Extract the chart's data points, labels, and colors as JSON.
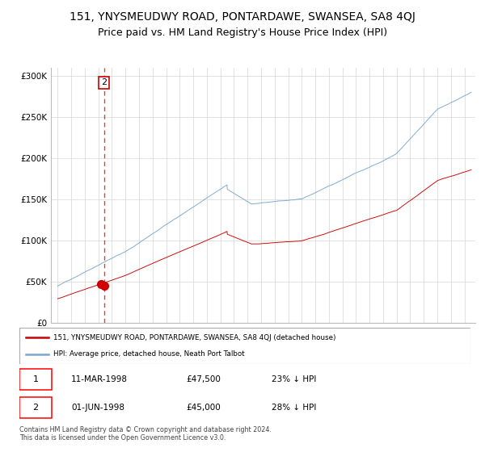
{
  "title": "151, YNYSMEUDWY ROAD, PONTARDAWE, SWANSEA, SA8 4QJ",
  "subtitle": "Price paid vs. HM Land Registry's House Price Index (HPI)",
  "ylim": [
    0,
    310000
  ],
  "yticks": [
    0,
    50000,
    100000,
    150000,
    200000,
    250000,
    300000
  ],
  "ytick_labels": [
    "£0",
    "£50K",
    "£100K",
    "£150K",
    "£200K",
    "£250K",
    "£300K"
  ],
  "sale1": {
    "date_num": 1998.17,
    "price": 47500,
    "label": "1",
    "date_str": "11-MAR-1998",
    "pct": "23% ↓ HPI"
  },
  "sale2": {
    "date_num": 1998.42,
    "price": 45000,
    "label": "2",
    "date_str": "01-JUN-1998",
    "pct": "28% ↓ HPI"
  },
  "legend_line1": "151, YNYSMEUDWY ROAD, PONTARDAWE, SWANSEA, SA8 4QJ (detached house)",
  "legend_line2": "HPI: Average price, detached house, Neath Port Talbot",
  "footnote": "Contains HM Land Registry data © Crown copyright and database right 2024.\nThis data is licensed under the Open Government Licence v3.0.",
  "red_color": "#cc0000",
  "blue_color": "#7ba7d0",
  "grid_color": "#dddddd",
  "title_fontsize": 10,
  "subtitle_fontsize": 9
}
